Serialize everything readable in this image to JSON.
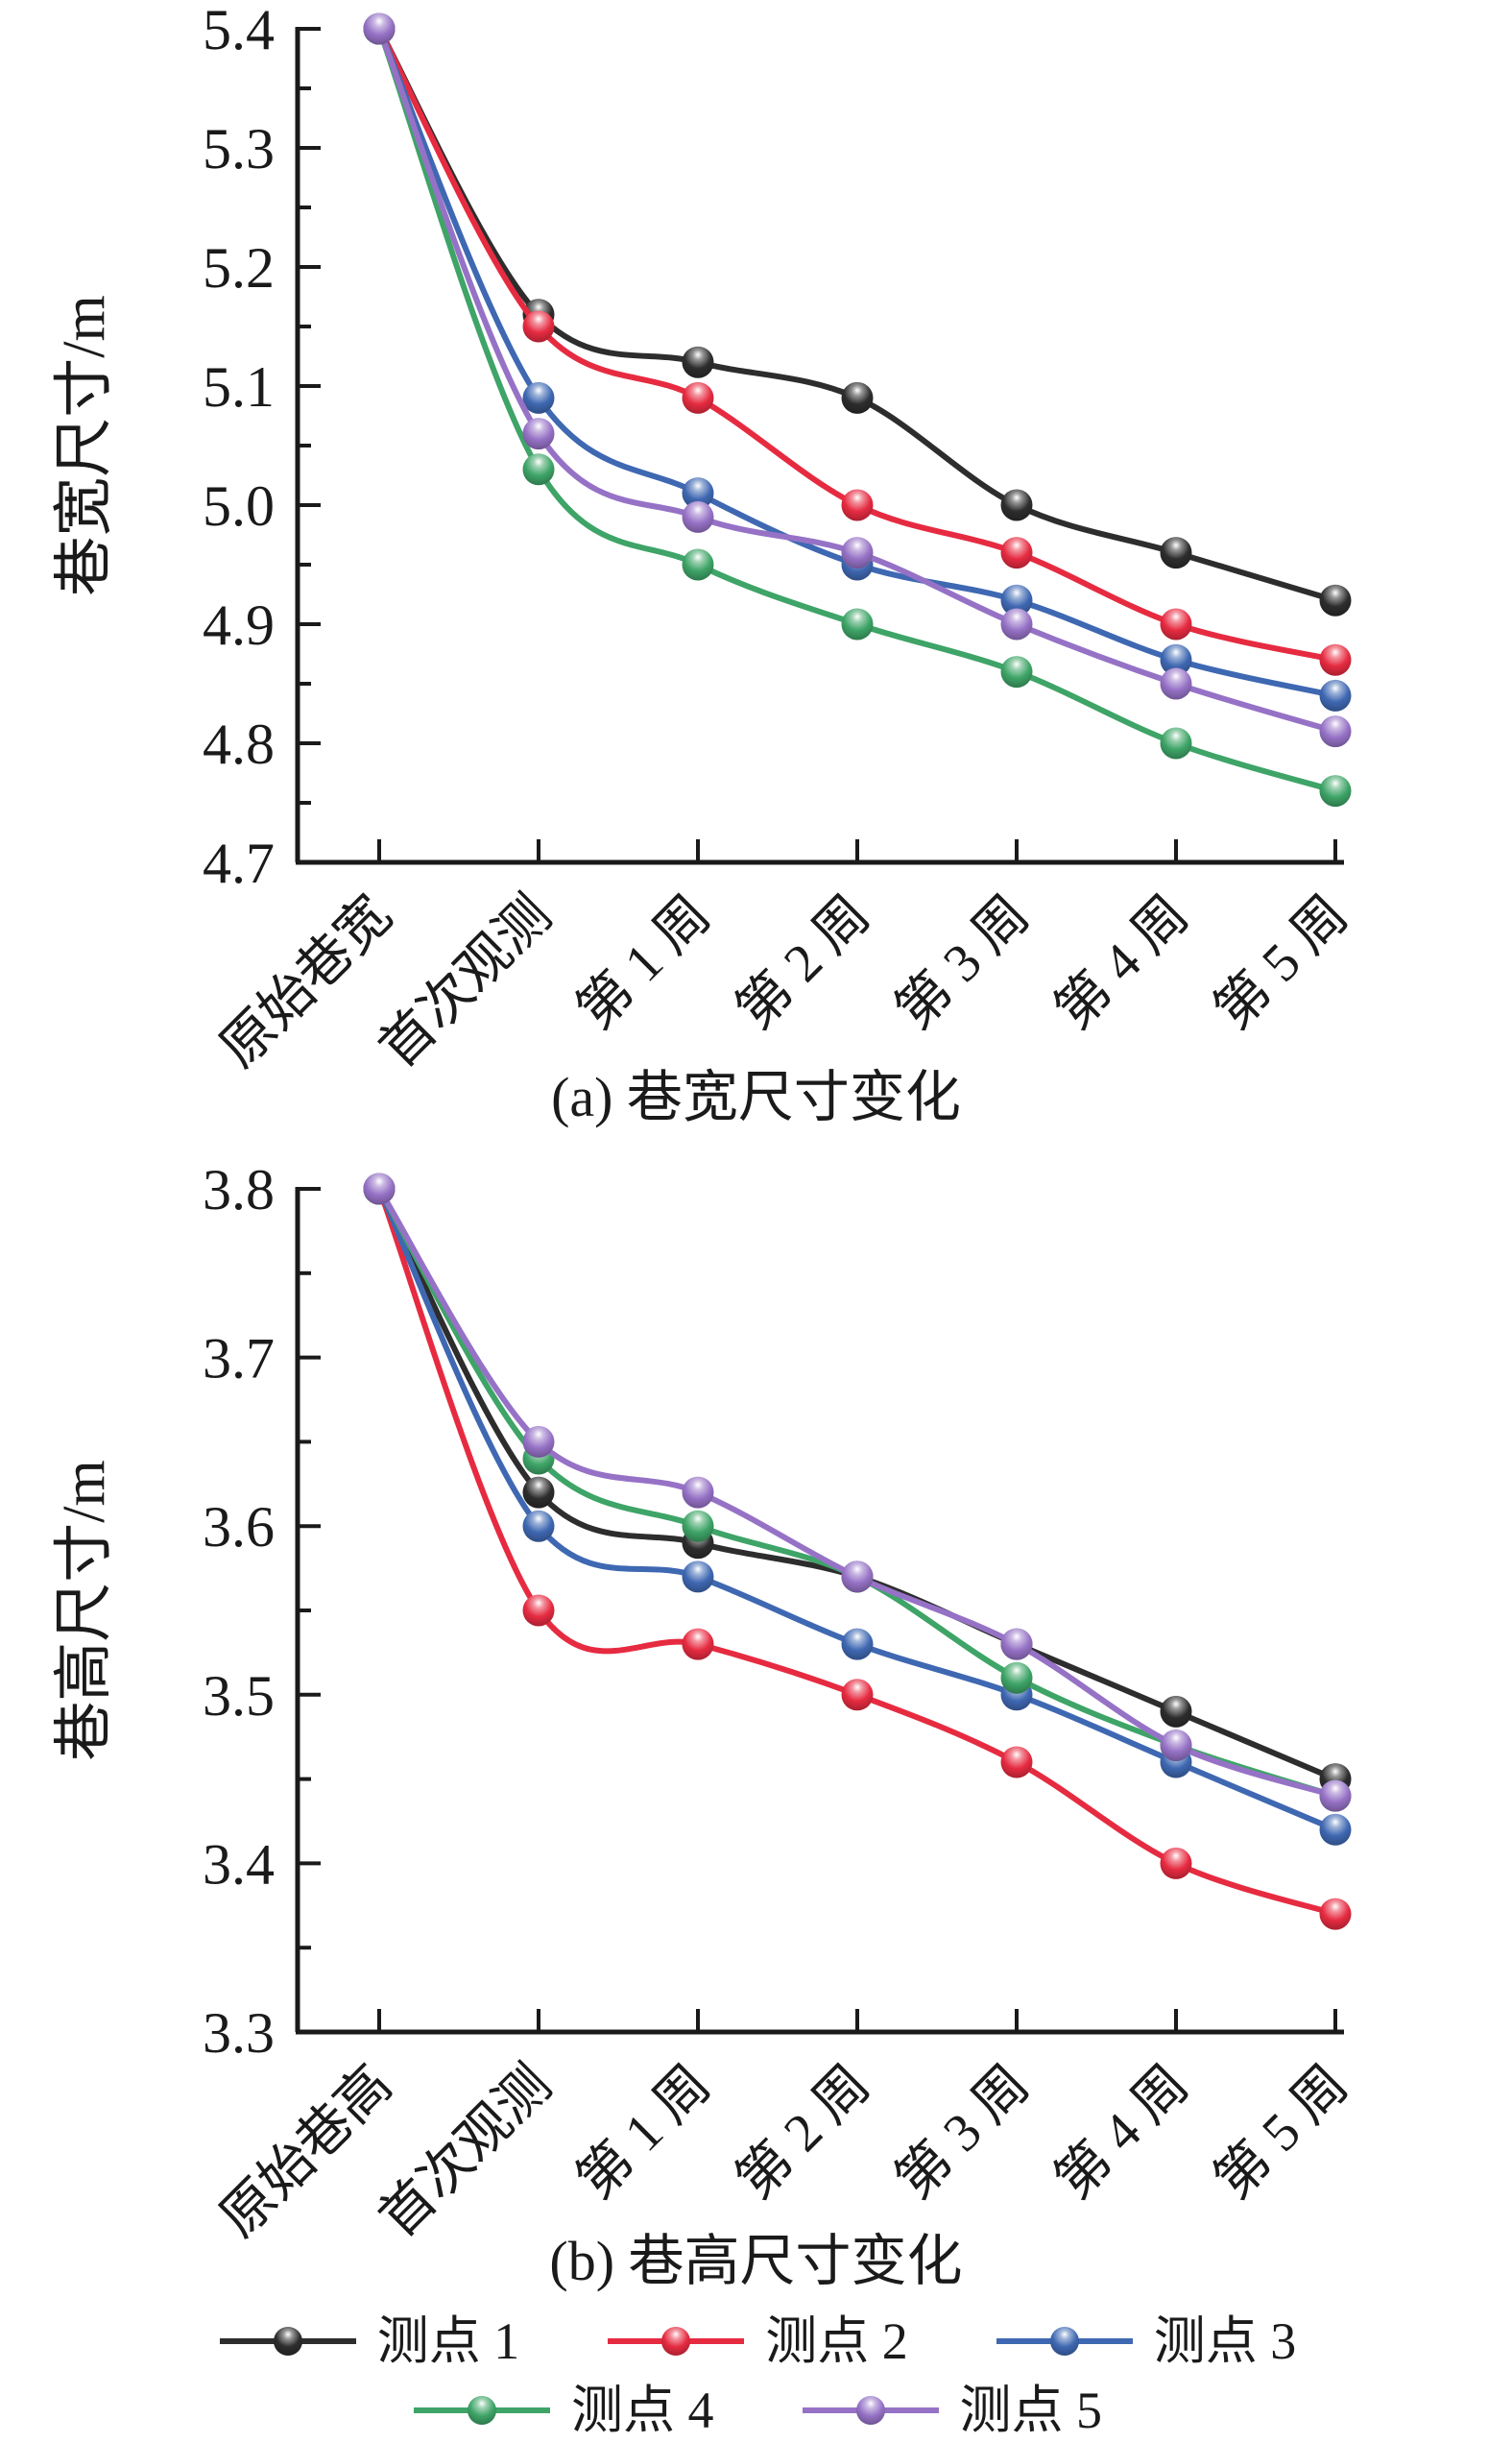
{
  "figure": {
    "caption_a": "(a) 巷宽尺寸变化",
    "caption_b": "(b) 巷高尺寸变化"
  },
  "legend_rows": [
    [
      0,
      1,
      2
    ],
    [
      3,
      4
    ]
  ],
  "chart_data": [
    {
      "type": "line",
      "title": "(a) 巷宽尺寸变化",
      "ylabel": "巷宽尺寸/m",
      "xlabel": "",
      "ylim": [
        4.7,
        5.4
      ],
      "ytick_step": 0.1,
      "yminor_step": 0.05,
      "ytick_decimals": 1,
      "grid": false,
      "legend_position": "shared-bottom",
      "categories": [
        "原始巷宽",
        "首次观测",
        "第 1 周",
        "第 2 周",
        "第 3 周",
        "第 4 周",
        "第 5 周"
      ],
      "series": [
        {
          "name": "测点 1",
          "color": "#2d2d2d",
          "values": [
            5.4,
            5.16,
            5.12,
            5.09,
            5.0,
            4.96,
            4.92
          ]
        },
        {
          "name": "测点 2",
          "color": "#e62b41",
          "values": [
            5.4,
            5.15,
            5.09,
            5.0,
            4.96,
            4.9,
            4.87
          ]
        },
        {
          "name": "测点 3",
          "color": "#3f68b2",
          "values": [
            5.4,
            5.09,
            5.01,
            4.95,
            4.92,
            4.87,
            4.84
          ]
        },
        {
          "name": "测点 4",
          "color": "#3ea467",
          "values": [
            5.4,
            5.03,
            4.95,
            4.9,
            4.86,
            4.8,
            4.76
          ]
        },
        {
          "name": "测点 5",
          "color": "#9672c6",
          "values": [
            5.4,
            5.06,
            4.99,
            4.96,
            4.9,
            4.85,
            4.81
          ]
        }
      ]
    },
    {
      "type": "line",
      "title": "(b) 巷高尺寸变化",
      "ylabel": "巷高尺寸/m",
      "xlabel": "",
      "ylim": [
        3.3,
        3.8
      ],
      "ytick_step": 0.1,
      "yminor_step": 0.05,
      "ytick_decimals": 1,
      "grid": false,
      "legend_position": "shared-bottom",
      "categories": [
        "原始巷高",
        "首次观测",
        "第 1 周",
        "第 2 周",
        "第 3 周",
        "第 4 周",
        "第 5 周"
      ],
      "series": [
        {
          "name": "测点 1",
          "color": "#2d2d2d",
          "values": [
            3.8,
            3.62,
            3.59,
            3.57,
            3.53,
            3.49,
            3.45
          ]
        },
        {
          "name": "测点 2",
          "color": "#e62b41",
          "values": [
            3.8,
            3.55,
            3.53,
            3.5,
            3.46,
            3.4,
            3.37
          ]
        },
        {
          "name": "测点 3",
          "color": "#3f68b2",
          "values": [
            3.8,
            3.6,
            3.57,
            3.53,
            3.5,
            3.46,
            3.42
          ]
        },
        {
          "name": "测点 4",
          "color": "#3ea467",
          "values": [
            3.8,
            3.64,
            3.6,
            3.57,
            3.51,
            3.47,
            3.44
          ]
        },
        {
          "name": "测点 5",
          "color": "#9672c6",
          "values": [
            3.8,
            3.65,
            3.62,
            3.57,
            3.53,
            3.47,
            3.44
          ]
        }
      ]
    }
  ]
}
